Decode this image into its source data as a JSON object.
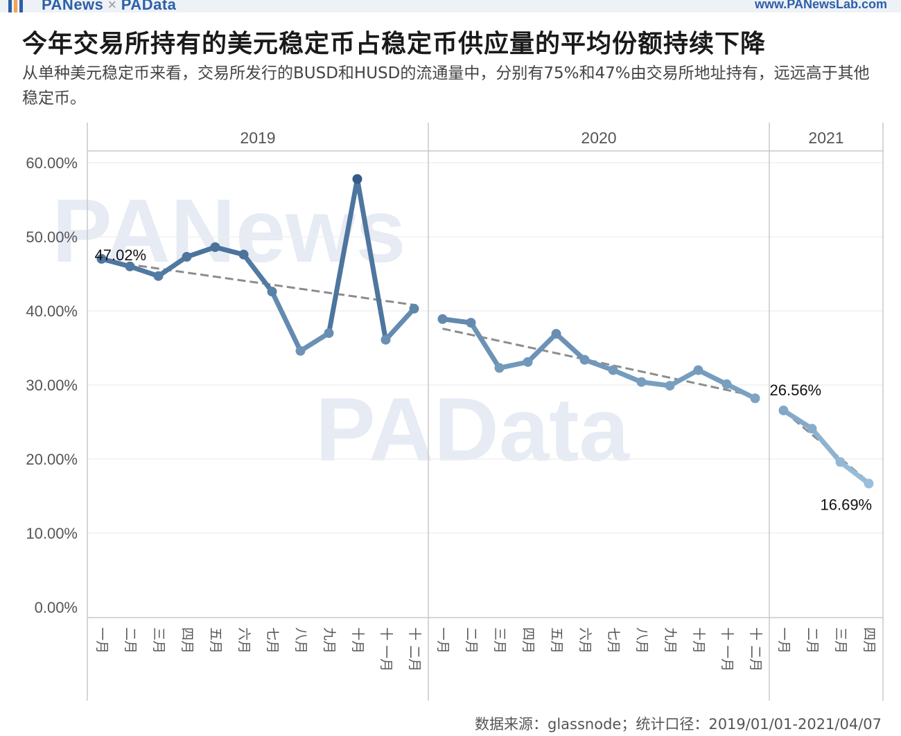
{
  "header": {
    "brand_left": "PANews",
    "brand_sep": "×",
    "brand_right": "PAData",
    "website": "www.PANewsLab.com"
  },
  "title": "今年交易所持有的美元稳定币占稳定币供应量的平均份额持续下降",
  "subtitle": "从单种美元稳定币来看，交易所发行的BUSD和HUSD的流通量中，分别有75%和47%由交易所地址持有，远远高于其他稳定币。",
  "footer": {
    "source": "数据来源：glassnode；统计口径：2019/01/01-2021/04/07"
  },
  "watermarks": [
    "PANews",
    "PAData"
  ],
  "colors": {
    "line_dark": "#2c5583",
    "line_light": "#a9cde6",
    "trend": "#8c8c8c",
    "grid": "#eeeeee",
    "divider": "#c8c8c8"
  },
  "chart_data": {
    "type": "line",
    "ylim": [
      0,
      60
    ],
    "yticks": [
      0,
      10,
      20,
      30,
      40,
      50,
      60
    ],
    "ytick_labels": [
      "0.00%",
      "10.00%",
      "20.00%",
      "30.00%",
      "40.00%",
      "50.00%",
      "60.00%"
    ],
    "grid": true,
    "panels": [
      {
        "year": "2019",
        "months": [
          "一月",
          "二月",
          "三月",
          "四月",
          "五月",
          "六月",
          "七月",
          "八月",
          "九月",
          "十月",
          "十一月",
          "十二月"
        ],
        "values": [
          47.02,
          46.0,
          44.7,
          47.3,
          48.6,
          47.6,
          42.6,
          34.6,
          37.0,
          57.8,
          36.1,
          40.3
        ],
        "trend": [
          46.8,
          40.8
        ]
      },
      {
        "year": "2020",
        "months": [
          "一月",
          "二月",
          "三月",
          "四月",
          "五月",
          "六月",
          "七月",
          "八月",
          "九月",
          "十月",
          "十一月",
          "十二月"
        ],
        "values": [
          38.9,
          38.4,
          32.3,
          33.1,
          36.9,
          33.4,
          32.0,
          30.4,
          29.9,
          32.0,
          30.1,
          28.2
        ],
        "trend": [
          37.6,
          28.5
        ]
      },
      {
        "year": "2021",
        "months": [
          "一月",
          "二月",
          "三月",
          "四月"
        ],
        "values": [
          26.56,
          24.1,
          19.6,
          16.69
        ],
        "trend": [
          26.5,
          16.9
        ]
      }
    ],
    "annotations": [
      {
        "text": "47.02%",
        "panel": 0,
        "index": 0
      },
      {
        "text": "26.56%",
        "panel": 2,
        "index": 0
      },
      {
        "text": "16.69%",
        "panel": 2,
        "index": 3
      }
    ]
  }
}
